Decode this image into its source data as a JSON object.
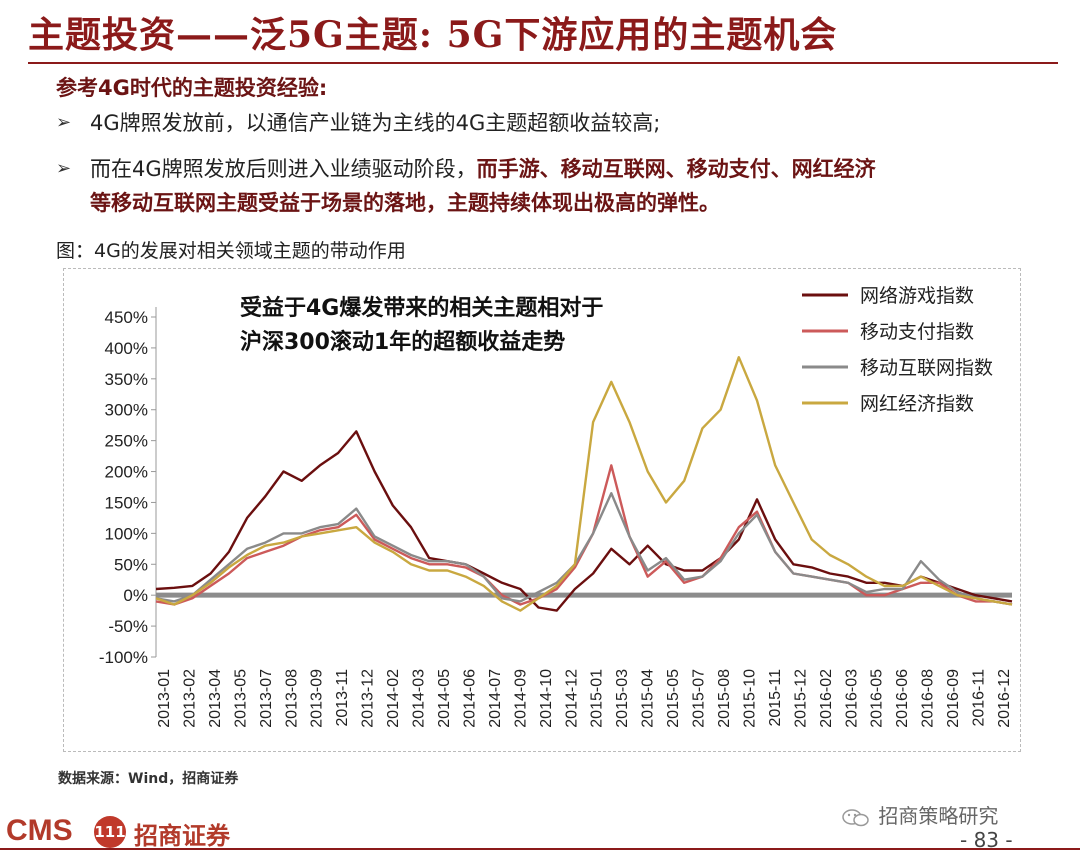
{
  "header": {
    "title": "主题投资——泛5G主题: 5G下游应用的主题机会"
  },
  "intro": {
    "subhead": "参考4G时代的主题投资经验:",
    "bullet1": "4G牌照发放前，以通信产业链为主线的4G主题超额收益较高;",
    "bullet2_prefix": "而在4G牌照发放后则进入业绩驱动阶段，",
    "bullet2_bold": "而手游、移动互联网、移动支付、网红经济",
    "bullet2_line2": "等移动互联网主题受益于场景的落地，主题持续体现出极高的弹性。",
    "bullet_symbol": "➢"
  },
  "figure": {
    "caption": "图：4G的发展对相关领域主题的带动作用"
  },
  "chart_data": {
    "type": "line",
    "title_line1": "受益于4G爆发带来的相关主题相对于",
    "title_line2": "沪深300滚动1年的超额收益走势",
    "ylim": [
      -100,
      450
    ],
    "yticks": [
      "-100%",
      "-50%",
      "0%",
      "50%",
      "100%",
      "150%",
      "200%",
      "250%",
      "300%",
      "350%",
      "400%",
      "450%"
    ],
    "ytick_values": [
      -100,
      -50,
      0,
      50,
      100,
      150,
      200,
      250,
      300,
      350,
      400,
      450
    ],
    "categories": [
      "2013-01",
      "2013-02",
      "2013-04",
      "2013-05",
      "2013-07",
      "2013-08",
      "2013-09",
      "2013-11",
      "2013-12",
      "2014-02",
      "2014-03",
      "2014-05",
      "2014-06",
      "2014-07",
      "2014-09",
      "2014-10",
      "2014-12",
      "2015-01",
      "2015-03",
      "2015-04",
      "2015-05",
      "2015-07",
      "2015-08",
      "2015-10",
      "2015-11",
      "2015-12",
      "2016-02",
      "2016-03",
      "2016-05",
      "2016-06",
      "2016-08",
      "2016-09",
      "2016-11",
      "2016-12"
    ],
    "x_index_range": [
      0,
      47
    ],
    "series": [
      {
        "name": "网络游戏指数",
        "color": "#6b0f0f",
        "x": [
          0,
          1,
          2,
          3,
          4,
          5,
          6,
          7,
          8,
          9,
          10,
          11,
          12,
          13,
          14,
          15,
          16,
          17,
          18,
          19,
          20,
          21,
          22,
          23,
          24,
          25,
          26,
          27,
          28,
          29,
          30,
          31,
          32,
          33,
          34,
          35,
          36,
          37,
          38,
          39,
          40,
          41,
          42,
          43,
          44,
          45,
          46,
          47
        ],
        "values": [
          10,
          12,
          15,
          35,
          70,
          125,
          160,
          200,
          185,
          210,
          230,
          265,
          200,
          145,
          110,
          60,
          55,
          50,
          35,
          20,
          10,
          -20,
          -25,
          10,
          35,
          75,
          50,
          80,
          50,
          40,
          40,
          60,
          90,
          155,
          90,
          50,
          45,
          35,
          30,
          20,
          20,
          15,
          30,
          20,
          10,
          0,
          -5,
          -10
        ]
      },
      {
        "name": "移动支付指数",
        "color": "#cc5a5a",
        "x": [
          0,
          1,
          2,
          3,
          4,
          5,
          6,
          7,
          8,
          9,
          10,
          11,
          12,
          13,
          14,
          15,
          16,
          17,
          18,
          19,
          20,
          21,
          22,
          23,
          24,
          25,
          26,
          27,
          28,
          29,
          30,
          31,
          32,
          33,
          34,
          35,
          36,
          37,
          38,
          39,
          40,
          41,
          42,
          43,
          44,
          45,
          46,
          47
        ],
        "values": [
          -10,
          -15,
          -5,
          15,
          35,
          60,
          70,
          80,
          95,
          105,
          110,
          130,
          90,
          75,
          60,
          50,
          50,
          45,
          30,
          0,
          -15,
          -5,
          10,
          45,
          100,
          210,
          95,
          30,
          55,
          20,
          30,
          60,
          110,
          135,
          70,
          35,
          30,
          25,
          20,
          0,
          0,
          10,
          20,
          20,
          0,
          -10,
          -10,
          -15
        ]
      },
      {
        "name": "移动互联网指数",
        "color": "#8a8a8a",
        "x": [
          0,
          1,
          2,
          3,
          4,
          5,
          6,
          7,
          8,
          9,
          10,
          11,
          12,
          13,
          14,
          15,
          16,
          17,
          18,
          19,
          20,
          21,
          22,
          23,
          24,
          25,
          26,
          27,
          28,
          29,
          30,
          31,
          32,
          33,
          34,
          35,
          36,
          37,
          38,
          39,
          40,
          41,
          42,
          43,
          44,
          45,
          46,
          47
        ],
        "values": [
          -5,
          -10,
          0,
          25,
          50,
          75,
          85,
          100,
          100,
          110,
          115,
          140,
          95,
          80,
          65,
          55,
          55,
          50,
          30,
          -5,
          -10,
          5,
          20,
          50,
          100,
          165,
          95,
          40,
          60,
          25,
          30,
          55,
          100,
          130,
          70,
          35,
          30,
          25,
          20,
          5,
          10,
          10,
          55,
          25,
          5,
          -5,
          -10,
          -15
        ]
      },
      {
        "name": "网红经济指数",
        "color": "#c9a840",
        "x": [
          0,
          1,
          2,
          3,
          4,
          5,
          6,
          7,
          8,
          9,
          10,
          11,
          12,
          13,
          14,
          15,
          16,
          17,
          18,
          19,
          20,
          21,
          22,
          23,
          24,
          25,
          26,
          27,
          28,
          29,
          30,
          31,
          32,
          33,
          34,
          35,
          36,
          37,
          38,
          39,
          40,
          41,
          42,
          43,
          44,
          45,
          46,
          47
        ],
        "values": [
          -5,
          -15,
          0,
          20,
          45,
          65,
          80,
          85,
          95,
          100,
          105,
          110,
          85,
          70,
          50,
          40,
          40,
          30,
          15,
          -10,
          -25,
          -5,
          15,
          50,
          280,
          345,
          280,
          200,
          150,
          185,
          270,
          300,
          385,
          315,
          210,
          150,
          90,
          65,
          50,
          30,
          15,
          15,
          30,
          15,
          0,
          -5,
          -10,
          -15
        ]
      }
    ]
  },
  "source": "数据来源：Wind，招商证券",
  "footer": {
    "logo_cms": "CMS",
    "logo_badge": "111",
    "logo_cn": "招商证券",
    "watermark": "招商策略研究",
    "page_number": "- 83 -"
  }
}
